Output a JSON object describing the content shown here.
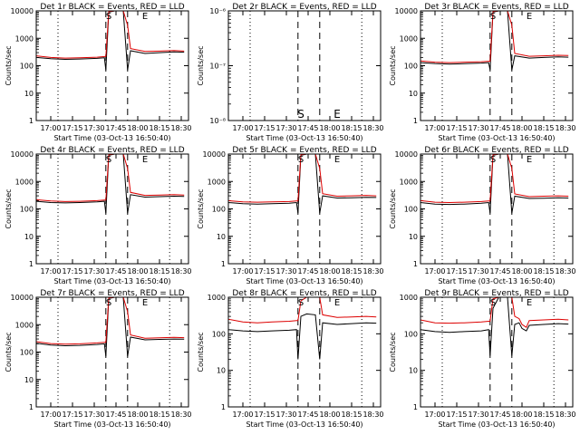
{
  "chart_data": [
    {
      "type": "line",
      "title": "Det 1r BLACK = Events, RED = LLD",
      "xlabel": "Start Time (03-Oct-13 16:50:40)",
      "ylabel": "Counts/sec",
      "y_scale": "log",
      "ylim": [
        1,
        10000
      ],
      "yticks": [
        "1",
        "10",
        "100",
        "1000",
        "10000"
      ],
      "xlim": [
        "16:50",
        "18:35"
      ],
      "xticks": [
        "17:00",
        "17:15",
        "17:30",
        "17:45",
        "18:00",
        "18:15",
        "18:30"
      ],
      "vlines_dotted": [
        "17:05",
        "18:22"
      ],
      "vlines_dashed": [
        "17:38",
        "17:53"
      ],
      "markers": [
        {
          "label": "S",
          "x": "17:40"
        },
        {
          "label": "E",
          "x": "18:05"
        }
      ],
      "series": [
        {
          "name": "Events",
          "color": "#000000",
          "x": [
            "16:50",
            "17:00",
            "17:10",
            "17:20",
            "17:32",
            "17:37",
            "17:38",
            "17:40",
            "17:44",
            "17:50",
            "17:53",
            "17:55",
            "18:05",
            "18:15",
            "18:25",
            "18:32"
          ],
          "y": [
            200,
            180,
            170,
            175,
            185,
            195,
            70,
            9000,
            10000,
            10000,
            70,
            350,
            280,
            300,
            320,
            310
          ]
        },
        {
          "name": "LLD",
          "color": "#dd0000",
          "x": [
            "16:50",
            "17:00",
            "17:10",
            "17:20",
            "17:32",
            "17:37",
            "17:38",
            "17:40",
            "17:44",
            "17:50",
            "17:53",
            "17:55",
            "18:05",
            "18:15",
            "18:25",
            "18:32"
          ],
          "y": [
            230,
            200,
            190,
            195,
            205,
            215,
            215,
            9500,
            10000,
            10000,
            3000,
            420,
            330,
            340,
            360,
            340
          ]
        }
      ]
    },
    {
      "type": "line",
      "title": "Det 2r BLACK = Events, RED = LLD",
      "xlabel": "Start Time (03-Oct-13 16:50:40)",
      "ylabel": "Counts/sec",
      "y_scale": "log",
      "ylim": [
        1e-08,
        1e-06
      ],
      "yticks": [
        "10⁻⁸",
        "10⁻⁷",
        "10⁻⁶"
      ],
      "xlim": [
        "16:50",
        "18:35"
      ],
      "xticks": [
        "17:00",
        "17:15",
        "17:30",
        "17:45",
        "18:00",
        "18:15",
        "18:30"
      ],
      "vlines_dotted": [
        "17:05",
        "18:22"
      ],
      "vlines_dashed": [
        "17:38",
        "17:53"
      ],
      "markers": [
        {
          "label": "S",
          "x": "17:40"
        },
        {
          "label": "E",
          "x": "18:05"
        }
      ],
      "series": []
    },
    {
      "type": "line",
      "title": "Det 3r BLACK = Events, RED = LLD",
      "xlabel": "Start Time (03-Oct-13 16:50:40)",
      "ylabel": "Counts/sec",
      "y_scale": "log",
      "ylim": [
        1,
        10000
      ],
      "yticks": [
        "1",
        "10",
        "100",
        "1000",
        "10000"
      ],
      "xlim": [
        "16:50",
        "18:35"
      ],
      "xticks": [
        "17:00",
        "17:15",
        "17:30",
        "17:45",
        "18:00",
        "18:15",
        "18:30"
      ],
      "vlines_dotted": [
        "17:05",
        "18:22"
      ],
      "vlines_dashed": [
        "17:38",
        "17:53"
      ],
      "markers": [
        {
          "label": "S",
          "x": "17:40"
        },
        {
          "label": "E",
          "x": "18:05"
        }
      ],
      "series": [
        {
          "name": "Events",
          "color": "#000000",
          "x": [
            "16:50",
            "17:00",
            "17:10",
            "17:20",
            "17:32",
            "17:37",
            "17:38",
            "17:40",
            "17:44",
            "17:50",
            "17:53",
            "17:55",
            "18:05",
            "18:15",
            "18:25",
            "18:32"
          ],
          "y": [
            130,
            120,
            115,
            118,
            125,
            130,
            70,
            9000,
            10000,
            10000,
            70,
            230,
            190,
            200,
            210,
            205
          ]
        },
        {
          "name": "LLD",
          "color": "#dd0000",
          "x": [
            "16:50",
            "17:00",
            "17:10",
            "17:20",
            "17:32",
            "17:37",
            "17:38",
            "17:40",
            "17:44",
            "17:50",
            "17:53",
            "17:55",
            "18:05",
            "18:15",
            "18:25",
            "18:32"
          ],
          "y": [
            150,
            135,
            130,
            135,
            140,
            145,
            145,
            9500,
            10000,
            10000,
            3000,
            280,
            220,
            230,
            240,
            235
          ]
        }
      ]
    },
    {
      "type": "line",
      "title": "Det 4r BLACK = Events, RED = LLD",
      "xlabel": "Start Time (03-Oct-13 16:50:40)",
      "ylabel": "Counts/sec",
      "y_scale": "log",
      "ylim": [
        1,
        10000
      ],
      "yticks": [
        "1",
        "10",
        "100",
        "1000",
        "10000"
      ],
      "xlim": [
        "16:50",
        "18:35"
      ],
      "xticks": [
        "17:00",
        "17:15",
        "17:30",
        "17:45",
        "18:00",
        "18:15",
        "18:30"
      ],
      "vlines_dotted": [
        "17:05",
        "18:22"
      ],
      "vlines_dashed": [
        "17:38",
        "17:53"
      ],
      "markers": [
        {
          "label": "S",
          "x": "17:40"
        },
        {
          "label": "E",
          "x": "18:05"
        }
      ],
      "series": [
        {
          "name": "Events",
          "color": "#000000",
          "x": [
            "16:50",
            "17:00",
            "17:10",
            "17:20",
            "17:32",
            "17:37",
            "17:38",
            "17:40",
            "17:44",
            "17:50",
            "17:53",
            "17:55",
            "18:05",
            "18:15",
            "18:25",
            "18:32"
          ],
          "y": [
            190,
            170,
            165,
            170,
            180,
            190,
            70,
            9000,
            10000,
            10000,
            70,
            330,
            270,
            280,
            290,
            285
          ]
        },
        {
          "name": "LLD",
          "color": "#dd0000",
          "x": [
            "16:50",
            "17:00",
            "17:10",
            "17:20",
            "17:32",
            "17:37",
            "17:38",
            "17:40",
            "17:44",
            "17:50",
            "17:53",
            "17:55",
            "18:05",
            "18:15",
            "18:25",
            "18:32"
          ],
          "y": [
            215,
            195,
            185,
            190,
            200,
            210,
            210,
            9500,
            10000,
            10000,
            3000,
            400,
            310,
            320,
            330,
            320
          ]
        }
      ]
    },
    {
      "type": "line",
      "title": "Det 5r BLACK = Events, RED = LLD",
      "xlabel": "Start Time (03-Oct-13 16:50:40)",
      "ylabel": "Counts/sec",
      "y_scale": "log",
      "ylim": [
        1,
        10000
      ],
      "yticks": [
        "1",
        "10",
        "100",
        "1000",
        "10000"
      ],
      "xlim": [
        "16:50",
        "18:35"
      ],
      "xticks": [
        "17:00",
        "17:15",
        "17:30",
        "17:45",
        "18:00",
        "18:15",
        "18:30"
      ],
      "vlines_dotted": [
        "17:05",
        "18:22"
      ],
      "vlines_dashed": [
        "17:38",
        "17:53"
      ],
      "markers": [
        {
          "label": "S",
          "x": "17:40"
        },
        {
          "label": "E",
          "x": "18:05"
        }
      ],
      "series": [
        {
          "name": "Events",
          "color": "#000000",
          "x": [
            "16:50",
            "17:00",
            "17:10",
            "17:20",
            "17:32",
            "17:37",
            "17:38",
            "17:40",
            "17:44",
            "17:50",
            "17:53",
            "17:55",
            "18:05",
            "18:15",
            "18:25",
            "18:32"
          ],
          "y": [
            170,
            155,
            150,
            155,
            160,
            170,
            70,
            9000,
            10000,
            10000,
            70,
            300,
            250,
            255,
            265,
            260
          ]
        },
        {
          "name": "LLD",
          "color": "#dd0000",
          "x": [
            "16:50",
            "17:00",
            "17:10",
            "17:20",
            "17:32",
            "17:37",
            "17:38",
            "17:40",
            "17:44",
            "17:50",
            "17:53",
            "17:55",
            "18:05",
            "18:15",
            "18:25",
            "18:32"
          ],
          "y": [
            200,
            180,
            175,
            180,
            185,
            195,
            195,
            9500,
            10000,
            10000,
            3000,
            360,
            290,
            300,
            310,
            300
          ]
        }
      ]
    },
    {
      "type": "line",
      "title": "Det 6r BLACK = Events, RED = LLD",
      "xlabel": "Start Time (03-Oct-13 16:50:40)",
      "ylabel": "Counts/sec",
      "y_scale": "log",
      "ylim": [
        1,
        10000
      ],
      "yticks": [
        "1",
        "10",
        "100",
        "1000",
        "10000"
      ],
      "xlim": [
        "16:50",
        "18:35"
      ],
      "xticks": [
        "17:00",
        "17:15",
        "17:30",
        "17:45",
        "18:00",
        "18:15",
        "18:30"
      ],
      "vlines_dotted": [
        "17:05",
        "18:22"
      ],
      "vlines_dashed": [
        "17:38",
        "17:53"
      ],
      "markers": [
        {
          "label": "S",
          "x": "17:40"
        },
        {
          "label": "E",
          "x": "18:05"
        }
      ],
      "series": [
        {
          "name": "Events",
          "color": "#000000",
          "x": [
            "16:50",
            "17:00",
            "17:10",
            "17:20",
            "17:32",
            "17:37",
            "17:38",
            "17:40",
            "17:44",
            "17:50",
            "17:53",
            "17:55",
            "18:05",
            "18:15",
            "18:25",
            "18:32"
          ],
          "y": [
            170,
            150,
            145,
            150,
            160,
            170,
            70,
            9000,
            10000,
            10000,
            70,
            290,
            240,
            245,
            255,
            250
          ]
        },
        {
          "name": "LLD",
          "color": "#dd0000",
          "x": [
            "16:50",
            "17:00",
            "17:10",
            "17:20",
            "17:32",
            "17:37",
            "17:38",
            "17:40",
            "17:44",
            "17:50",
            "17:53",
            "17:55",
            "18:05",
            "18:15",
            "18:25",
            "18:32"
          ],
          "y": [
            200,
            175,
            170,
            175,
            185,
            195,
            195,
            9500,
            10000,
            10000,
            3000,
            350,
            280,
            290,
            300,
            290
          ]
        }
      ]
    },
    {
      "type": "line",
      "title": "Det 7r BLACK = Events, RED = LLD",
      "xlabel": "Start Time (03-Oct-13 16:50:40)",
      "ylabel": "Counts/sec",
      "y_scale": "log",
      "ylim": [
        1,
        10000
      ],
      "yticks": [
        "1",
        "10",
        "100",
        "1000",
        "10000"
      ],
      "xlim": [
        "16:50",
        "18:35"
      ],
      "xticks": [
        "17:00",
        "17:15",
        "17:30",
        "17:45",
        "18:00",
        "18:15",
        "18:30"
      ],
      "vlines_dotted": [
        "17:05",
        "18:22"
      ],
      "vlines_dashed": [
        "17:38",
        "17:53"
      ],
      "markers": [
        {
          "label": "S",
          "x": "17:40"
        },
        {
          "label": "E",
          "x": "18:05"
        }
      ],
      "series": [
        {
          "name": "Events",
          "color": "#000000",
          "x": [
            "16:50",
            "17:00",
            "17:10",
            "17:20",
            "17:32",
            "17:37",
            "17:38",
            "17:40",
            "17:44",
            "17:50",
            "17:53",
            "17:55",
            "18:05",
            "18:15",
            "18:25",
            "18:32"
          ],
          "y": [
            210,
            180,
            170,
            175,
            190,
            200,
            70,
            9000,
            10000,
            10000,
            70,
            350,
            280,
            290,
            300,
            295
          ]
        },
        {
          "name": "LLD",
          "color": "#dd0000",
          "x": [
            "16:50",
            "17:00",
            "17:10",
            "17:20",
            "17:32",
            "17:37",
            "17:38",
            "17:40",
            "17:44",
            "17:50",
            "17:53",
            "17:55",
            "18:05",
            "18:15",
            "18:25",
            "18:32"
          ],
          "y": [
            240,
            205,
            195,
            200,
            215,
            225,
            225,
            9500,
            10000,
            10000,
            3000,
            420,
            320,
            330,
            345,
            335
          ]
        }
      ]
    },
    {
      "type": "line",
      "title": "Det 8r BLACK = Events, RED = LLD",
      "xlabel": "Start Time (03-Oct-13 16:50:40)",
      "ylabel": "Counts/sec",
      "y_scale": "log",
      "ylim": [
        1,
        1000
      ],
      "yticks": [
        "1",
        "10",
        "100",
        "1000"
      ],
      "xlim": [
        "16:50",
        "18:35"
      ],
      "xticks": [
        "17:00",
        "17:15",
        "17:30",
        "17:45",
        "18:00",
        "18:15",
        "18:30"
      ],
      "vlines_dotted": [
        "17:05",
        "18:22"
      ],
      "vlines_dashed": [
        "17:38",
        "17:53"
      ],
      "markers": [
        {
          "label": "S",
          "x": "17:40"
        },
        {
          "label": "E",
          "x": "18:05"
        }
      ],
      "series": [
        {
          "name": "Events",
          "color": "#000000",
          "x": [
            "16:50",
            "17:00",
            "17:10",
            "17:20",
            "17:32",
            "17:37",
            "17:38",
            "17:40",
            "17:44",
            "17:50",
            "17:53",
            "17:55",
            "18:05",
            "18:15",
            "18:25",
            "18:32"
          ],
          "y": [
            130,
            120,
            115,
            120,
            125,
            130,
            20,
            300,
            350,
            330,
            20,
            200,
            180,
            190,
            200,
            195
          ]
        },
        {
          "name": "LLD",
          "color": "#dd0000",
          "x": [
            "16:50",
            "17:00",
            "17:10",
            "17:20",
            "17:32",
            "17:37",
            "17:38",
            "17:40",
            "17:44",
            "17:50",
            "17:53",
            "17:55",
            "18:05",
            "18:15",
            "18:25",
            "18:32"
          ],
          "y": [
            250,
            210,
            200,
            210,
            220,
            230,
            230,
            800,
            1000,
            1000,
            1000,
            330,
            280,
            290,
            300,
            290
          ]
        }
      ]
    },
    {
      "type": "line",
      "title": "Det 9r BLACK = Events, RED = LLD",
      "xlabel": "Start Time (03-Oct-13 16:50:40)",
      "ylabel": "Counts/sec",
      "y_scale": "log",
      "ylim": [
        1,
        1000
      ],
      "yticks": [
        "1",
        "10",
        "100",
        "1000"
      ],
      "xlim": [
        "16:50",
        "18:35"
      ],
      "xticks": [
        "17:00",
        "17:15",
        "17:30",
        "17:45",
        "18:00",
        "18:15",
        "18:30"
      ],
      "vlines_dotted": [
        "17:05",
        "18:22"
      ],
      "vlines_dashed": [
        "17:38",
        "17:53"
      ],
      "markers": [
        {
          "label": "S",
          "x": "17:40"
        },
        {
          "label": "E",
          "x": "18:05"
        }
      ],
      "series": [
        {
          "name": "Events",
          "color": "#000000",
          "x": [
            "16:50",
            "17:00",
            "17:10",
            "17:20",
            "17:32",
            "17:37",
            "17:38",
            "17:40",
            "17:44",
            "17:50",
            "17:53",
            "17:55",
            "17:58",
            "18:00",
            "18:03",
            "18:05",
            "18:15",
            "18:25",
            "18:32"
          ],
          "y": [
            130,
            115,
            110,
            115,
            120,
            130,
            25,
            500,
            1000,
            1000,
            25,
            180,
            200,
            140,
            120,
            170,
            180,
            190,
            185
          ]
        },
        {
          "name": "LLD",
          "color": "#dd0000",
          "x": [
            "16:50",
            "17:00",
            "17:10",
            "17:20",
            "17:32",
            "17:37",
            "17:38",
            "17:40",
            "17:44",
            "17:50",
            "17:53",
            "17:55",
            "17:58",
            "18:00",
            "18:03",
            "18:05",
            "18:15",
            "18:25",
            "18:32"
          ],
          "y": [
            240,
            200,
            195,
            200,
            210,
            220,
            220,
            900,
            1000,
            1000,
            1000,
            300,
            260,
            180,
            150,
            230,
            240,
            250,
            240
          ]
        }
      ]
    }
  ]
}
